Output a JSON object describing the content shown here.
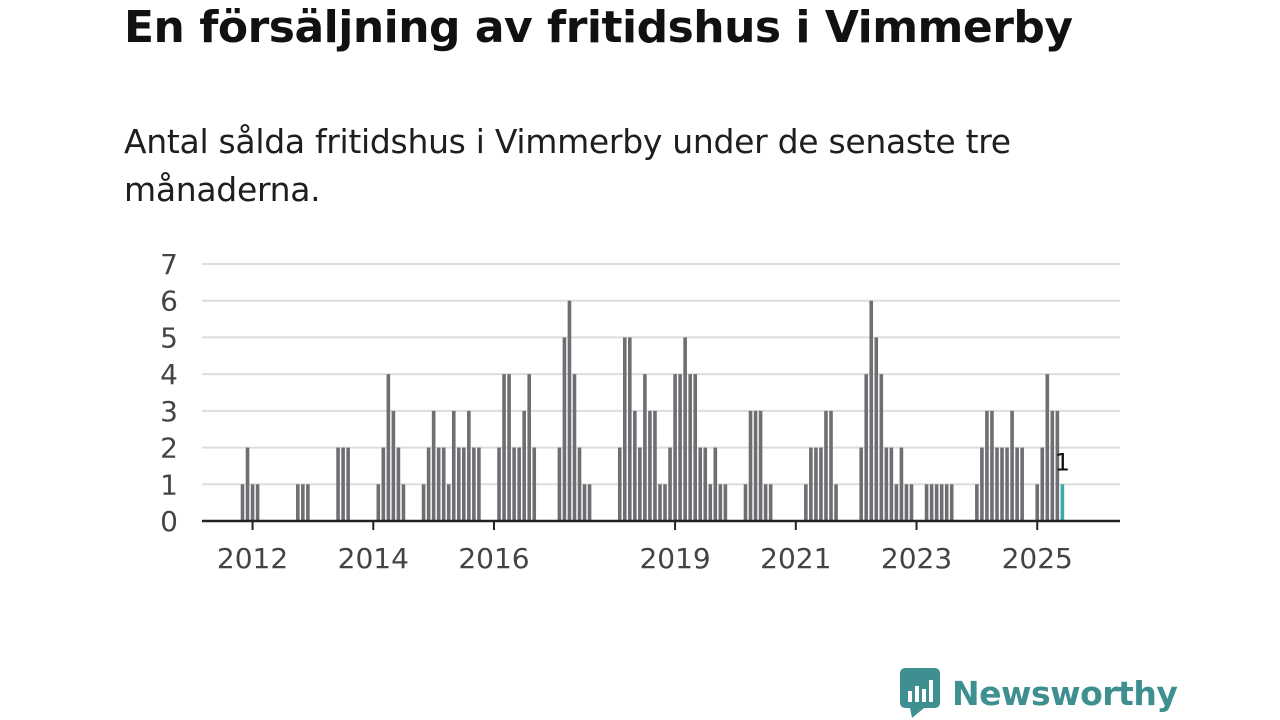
{
  "header": {
    "title": "En försäljning av fritidshus i Vimmerby",
    "subtitle": "Antal sålda fritidshus i Vimmerby under de senaste tre månaderna."
  },
  "brand": {
    "name": "Newsworthy"
  },
  "colors": {
    "bar": "#6e6e73",
    "highlight": "#3aaaa6",
    "grid": "#dddddd",
    "axis": "#222222",
    "brand": "#3e8f8f"
  },
  "chart_data": {
    "type": "bar",
    "title": "En försäljning av fritidshus i Vimmerby",
    "subtitle": "Antal sålda fritidshus i Vimmerby under de senaste tre månaderna.",
    "xlabel": "",
    "ylabel": "",
    "ylim": [
      0,
      7
    ],
    "yticks": [
      0,
      1,
      2,
      3,
      4,
      5,
      6,
      7
    ],
    "grid": true,
    "start_year": 2011,
    "start_month": 11,
    "x_tick_labels": [
      {
        "label": "2012",
        "index": 2
      },
      {
        "label": "2014",
        "index": 26
      },
      {
        "label": "2016",
        "index": 50
      },
      {
        "label": "2019",
        "index": 86
      },
      {
        "label": "2021",
        "index": 110
      },
      {
        "label": "2023",
        "index": 134
      },
      {
        "label": "2025",
        "index": 158
      }
    ],
    "values": [
      1,
      2,
      1,
      1,
      0,
      0,
      0,
      0,
      0,
      0,
      0,
      1,
      1,
      1,
      0,
      0,
      0,
      0,
      0,
      2,
      2,
      2,
      0,
      0,
      0,
      0,
      0,
      1,
      2,
      4,
      3,
      2,
      1,
      0,
      0,
      0,
      1,
      2,
      3,
      2,
      2,
      1,
      3,
      2,
      2,
      3,
      2,
      2,
      0,
      0,
      0,
      2,
      4,
      4,
      2,
      2,
      3,
      4,
      2,
      0,
      0,
      0,
      0,
      2,
      5,
      6,
      4,
      2,
      1,
      1,
      0,
      0,
      0,
      0,
      0,
      2,
      5,
      5,
      3,
      2,
      4,
      3,
      3,
      1,
      1,
      2,
      4,
      4,
      5,
      4,
      4,
      2,
      2,
      1,
      2,
      1,
      1,
      0,
      0,
      0,
      1,
      3,
      3,
      3,
      1,
      1,
      0,
      0,
      0,
      0,
      0,
      0,
      1,
      2,
      2,
      2,
      3,
      3,
      1,
      0,
      0,
      0,
      0,
      2,
      4,
      6,
      5,
      4,
      2,
      2,
      1,
      2,
      1,
      1,
      0,
      0,
      1,
      1,
      1,
      1,
      1,
      1,
      0,
      0,
      0,
      0,
      1,
      2,
      3,
      3,
      2,
      2,
      2,
      3,
      2,
      2,
      0,
      0,
      1,
      2,
      4,
      3,
      3,
      1
    ],
    "highlight_last": true,
    "last_label": "1"
  }
}
